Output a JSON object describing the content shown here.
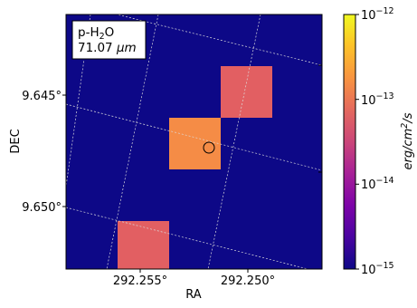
{
  "chart_data": {
    "type": "heatmap",
    "xlabel": "RA",
    "ylabel": "DEC",
    "x_ticks": [
      {
        "value": 292.255,
        "label": "292.255°"
      },
      {
        "value": 292.25,
        "label": "292.250°"
      }
    ],
    "y_ticks": [
      {
        "value": 9.645,
        "label": "9.645°"
      },
      {
        "value": 9.65,
        "label": "9.650°"
      }
    ],
    "legend": {
      "line1": "p-H",
      "line1_sub": "2",
      "line1_end": "O",
      "line2_value": "71.07",
      "line2_unit": "μm"
    },
    "colorbar": {
      "label_base": "erg/cm",
      "label_sup": "2",
      "label_end": "/s",
      "scale": "log",
      "range": [
        1e-15,
        1e-12
      ],
      "ticks": [
        {
          "value": 1e-12,
          "base": "10",
          "exp": "−12"
        },
        {
          "value": 1e-13,
          "base": "10",
          "exp": "−13"
        },
        {
          "value": 1e-14,
          "base": "10",
          "exp": "−14"
        },
        {
          "value": 1e-15,
          "base": "10",
          "exp": "−15"
        }
      ],
      "colormap": "plasma"
    },
    "background_value": 1e-15,
    "pixels": [
      {
        "row": 1,
        "col": 3,
        "value": 1.4e-13
      },
      {
        "row": 2,
        "col": 2,
        "value": 3e-13
      },
      {
        "row": 4,
        "col": 1,
        "value": 1.4e-13
      }
    ],
    "grid": "on",
    "colors": {
      "background": "#0d0887",
      "pixel_top_right": "#e25f62",
      "pixel_center": "#f58c46",
      "pixel_bottom_left": "#e25f62"
    }
  }
}
